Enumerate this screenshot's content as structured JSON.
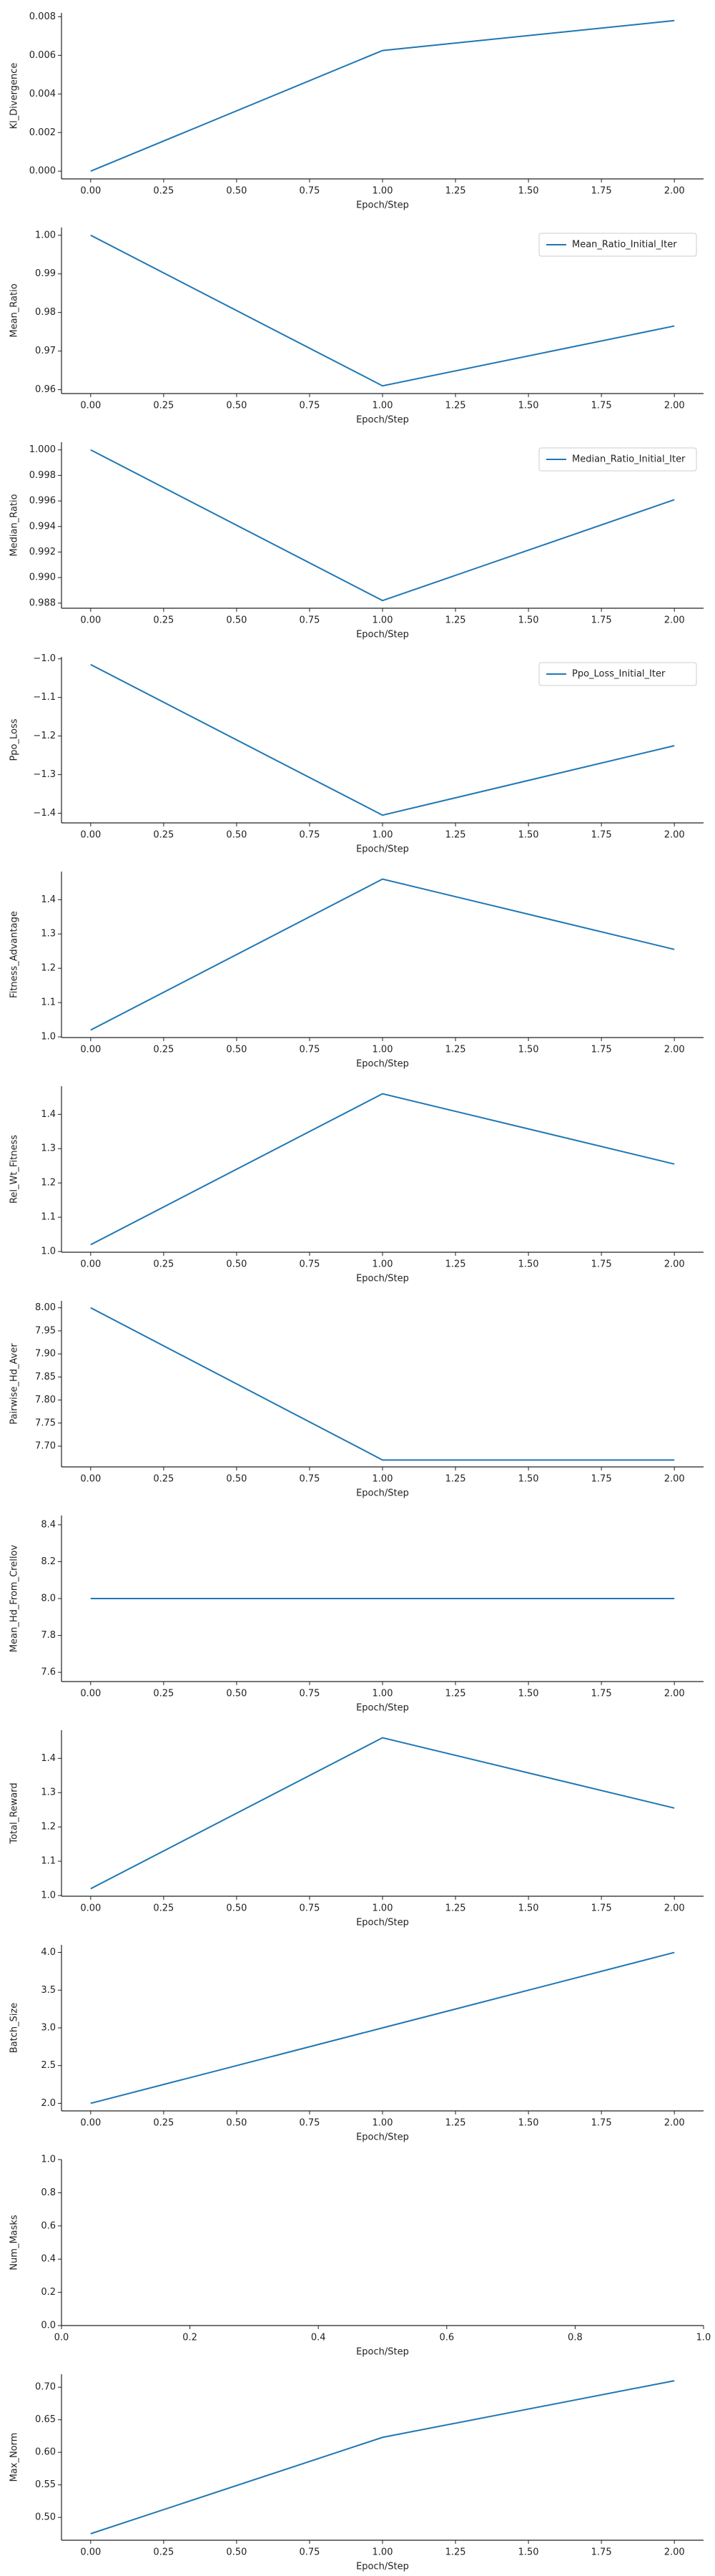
{
  "chart_data": [
    {
      "type": "line",
      "xlabel": "Epoch/Step",
      "ylabel": "Kl_Divergence",
      "x": [
        0,
        1,
        2
      ],
      "series": [
        {
          "color": "#1f77b4",
          "values": [
            0.0,
            0.00625,
            0.0078
          ]
        }
      ],
      "xlim": [
        -0.1,
        2.1
      ],
      "ylim": [
        -0.0004,
        0.0082
      ],
      "xticks": [
        {
          "value": 0,
          "label": "0.00"
        },
        0.25,
        {
          "value": 0.5,
          "label": "0.50"
        },
        0.75,
        {
          "value": 1,
          "label": "1.00"
        },
        1.25,
        {
          "value": 1.5,
          "label": "1.50"
        },
        1.75,
        {
          "value": 2,
          "label": "2.00"
        }
      ],
      "yticks": [
        {
          "value": 0,
          "label": "0.000"
        },
        0.002,
        0.004,
        0.006,
        0.008
      ]
    },
    {
      "type": "line",
      "xlabel": "Epoch/Step",
      "ylabel": "Mean_Ratio",
      "x": [
        0,
        1,
        2
      ],
      "legend": "upper right",
      "series": [
        {
          "name": "Mean_Ratio_Initial_Iter",
          "color": "#1f77b4",
          "values": [
            1.0,
            0.961,
            0.9765
          ]
        }
      ],
      "xlim": [
        -0.1,
        2.1
      ],
      "ylim": [
        0.959,
        1.002
      ],
      "xticks": [
        {
          "value": 0,
          "label": "0.00"
        },
        0.25,
        {
          "value": 0.5,
          "label": "0.50"
        },
        0.75,
        {
          "value": 1,
          "label": "1.00"
        },
        1.25,
        {
          "value": 1.5,
          "label": "1.50"
        },
        1.75,
        {
          "value": 2,
          "label": "2.00"
        }
      ],
      "yticks": [
        0.96,
        0.97,
        0.98,
        0.99,
        {
          "value": 1,
          "label": "1.00"
        }
      ]
    },
    {
      "type": "line",
      "xlabel": "Epoch/Step",
      "ylabel": "Median_Ratio",
      "x": [
        0,
        1,
        2
      ],
      "legend": "upper right",
      "series": [
        {
          "name": "Median_Ratio_Initial_Iter",
          "color": "#1f77b4",
          "values": [
            1.0,
            0.9882,
            0.9961
          ]
        }
      ],
      "xlim": [
        -0.1,
        2.1
      ],
      "ylim": [
        0.9876,
        1.0006
      ],
      "xticks": [
        {
          "value": 0,
          "label": "0.00"
        },
        0.25,
        {
          "value": 0.5,
          "label": "0.50"
        },
        0.75,
        {
          "value": 1,
          "label": "1.00"
        },
        1.25,
        {
          "value": 1.5,
          "label": "1.50"
        },
        1.75,
        {
          "value": 2,
          "label": "2.00"
        }
      ],
      "yticks": [
        0.988,
        {
          "value": 0.99,
          "label": "0.990"
        },
        0.992,
        0.994,
        0.996,
        0.998,
        {
          "value": 1,
          "label": "1.000"
        }
      ]
    },
    {
      "type": "line",
      "xlabel": "Epoch/Step",
      "ylabel": "Ppo_Loss",
      "x": [
        0,
        1,
        2
      ],
      "legend": "upper right",
      "series": [
        {
          "name": "Ppo_Loss_Initial_Iter",
          "color": "#1f77b4",
          "values": [
            -1.015,
            -1.405,
            -1.225
          ]
        }
      ],
      "xlim": [
        -0.1,
        2.1
      ],
      "ylim": [
        -1.425,
        -0.995
      ],
      "xticks": [
        {
          "value": 0,
          "label": "0.00"
        },
        0.25,
        {
          "value": 0.5,
          "label": "0.50"
        },
        0.75,
        {
          "value": 1,
          "label": "1.00"
        },
        1.25,
        {
          "value": 1.5,
          "label": "1.50"
        },
        1.75,
        {
          "value": 2,
          "label": "2.00"
        }
      ],
      "yticks": [
        {
          "value": -1.0,
          "label": "−1.0"
        },
        {
          "value": -1.1,
          "label": "−1.1"
        },
        {
          "value": -1.2,
          "label": "−1.2"
        },
        {
          "value": -1.3,
          "label": "−1.3"
        },
        {
          "value": -1.4,
          "label": "−1.4"
        }
      ]
    },
    {
      "type": "line",
      "xlabel": "Epoch/Step",
      "ylabel": "Fitness_Advantage",
      "x": [
        0,
        1,
        2
      ],
      "series": [
        {
          "color": "#1f77b4",
          "values": [
            1.02,
            1.46,
            1.255
          ]
        }
      ],
      "xlim": [
        -0.1,
        2.1
      ],
      "ylim": [
        0.998,
        1.482
      ],
      "xticks": [
        {
          "value": 0,
          "label": "0.00"
        },
        0.25,
        {
          "value": 0.5,
          "label": "0.50"
        },
        0.75,
        {
          "value": 1,
          "label": "1.00"
        },
        1.25,
        {
          "value": 1.5,
          "label": "1.50"
        },
        1.75,
        {
          "value": 2,
          "label": "2.00"
        }
      ],
      "yticks": [
        {
          "value": 1,
          "label": "1.0"
        },
        1.1,
        1.2,
        1.3,
        1.4
      ]
    },
    {
      "type": "line",
      "xlabel": "Epoch/Step",
      "ylabel": "Rel_Wt_Fitness",
      "x": [
        0,
        1,
        2
      ],
      "series": [
        {
          "color": "#1f77b4",
          "values": [
            1.02,
            1.46,
            1.255
          ]
        }
      ],
      "xlim": [
        -0.1,
        2.1
      ],
      "ylim": [
        0.998,
        1.482
      ],
      "xticks": [
        {
          "value": 0,
          "label": "0.00"
        },
        0.25,
        {
          "value": 0.5,
          "label": "0.50"
        },
        0.75,
        {
          "value": 1,
          "label": "1.00"
        },
        1.25,
        {
          "value": 1.5,
          "label": "1.50"
        },
        1.75,
        {
          "value": 2,
          "label": "2.00"
        }
      ],
      "yticks": [
        {
          "value": 1,
          "label": "1.0"
        },
        1.1,
        1.2,
        1.3,
        1.4
      ]
    },
    {
      "type": "line",
      "xlabel": "Epoch/Step",
      "ylabel": "Pairwise_Hd_Aver",
      "x": [
        0,
        1,
        2
      ],
      "series": [
        {
          "color": "#1f77b4",
          "values": [
            8.0,
            7.67,
            7.67
          ]
        }
      ],
      "xlim": [
        -0.1,
        2.1
      ],
      "ylim": [
        7.655,
        8.015
      ],
      "xticks": [
        {
          "value": 0,
          "label": "0.00"
        },
        0.25,
        {
          "value": 0.5,
          "label": "0.50"
        },
        0.75,
        {
          "value": 1,
          "label": "1.00"
        },
        1.25,
        {
          "value": 1.5,
          "label": "1.50"
        },
        1.75,
        {
          "value": 2,
          "label": "2.00"
        }
      ],
      "yticks": [
        {
          "value": 7.7,
          "label": "7.70"
        },
        7.75,
        {
          "value": 7.8,
          "label": "7.80"
        },
        7.85,
        {
          "value": 7.9,
          "label": "7.90"
        },
        7.95,
        {
          "value": 8,
          "label": "8.00"
        }
      ]
    },
    {
      "type": "line",
      "xlabel": "Epoch/Step",
      "ylabel": "Mean_Hd_From_Crellov",
      "x": [
        0,
        1,
        2
      ],
      "series": [
        {
          "color": "#1f77b4",
          "values": [
            8.0,
            8.0,
            8.0
          ]
        }
      ],
      "xlim": [
        -0.1,
        2.1
      ],
      "ylim": [
        7.55,
        8.45
      ],
      "xticks": [
        {
          "value": 0,
          "label": "0.00"
        },
        0.25,
        {
          "value": 0.5,
          "label": "0.50"
        },
        0.75,
        {
          "value": 1,
          "label": "1.00"
        },
        1.25,
        {
          "value": 1.5,
          "label": "1.50"
        },
        1.75,
        {
          "value": 2,
          "label": "2.00"
        }
      ],
      "yticks": [
        7.6,
        7.8,
        {
          "value": 8,
          "label": "8.0"
        },
        8.2,
        8.4
      ]
    },
    {
      "type": "line",
      "xlabel": "Epoch/Step",
      "ylabel": "Total_Reward",
      "x": [
        0,
        1,
        2
      ],
      "series": [
        {
          "color": "#1f77b4",
          "values": [
            1.02,
            1.46,
            1.255
          ]
        }
      ],
      "xlim": [
        -0.1,
        2.1
      ],
      "ylim": [
        0.998,
        1.482
      ],
      "xticks": [
        {
          "value": 0,
          "label": "0.00"
        },
        0.25,
        {
          "value": 0.5,
          "label": "0.50"
        },
        0.75,
        {
          "value": 1,
          "label": "1.00"
        },
        1.25,
        {
          "value": 1.5,
          "label": "1.50"
        },
        1.75,
        {
          "value": 2,
          "label": "2.00"
        }
      ],
      "yticks": [
        {
          "value": 1,
          "label": "1.0"
        },
        1.1,
        1.2,
        1.3,
        1.4
      ]
    },
    {
      "type": "line",
      "xlabel": "Epoch/Step",
      "ylabel": "Batch_Size",
      "x": [
        0,
        1,
        2
      ],
      "series": [
        {
          "color": "#1f77b4",
          "values": [
            2,
            3,
            4
          ]
        }
      ],
      "xlim": [
        -0.1,
        2.1
      ],
      "ylim": [
        1.9,
        4.1
      ],
      "xticks": [
        {
          "value": 0,
          "label": "0.00"
        },
        0.25,
        {
          "value": 0.5,
          "label": "0.50"
        },
        0.75,
        {
          "value": 1,
          "label": "1.00"
        },
        1.25,
        {
          "value": 1.5,
          "label": "1.50"
        },
        1.75,
        {
          "value": 2,
          "label": "2.00"
        }
      ],
      "yticks": [
        {
          "value": 2,
          "label": "2.0"
        },
        2.5,
        {
          "value": 3,
          "label": "3.0"
        },
        3.5,
        {
          "value": 4,
          "label": "4.0"
        }
      ]
    },
    {
      "type": "line",
      "xlabel": "Epoch/Step",
      "ylabel": "Num_Masks",
      "x": [],
      "series": [],
      "xlim": [
        0,
        1
      ],
      "ylim": [
        0,
        1
      ],
      "xticks": [
        {
          "value": 0,
          "label": "0.0"
        },
        0.2,
        0.4,
        0.6,
        0.8,
        {
          "value": 1,
          "label": "1.0"
        }
      ],
      "yticks": [
        {
          "value": 0,
          "label": "0.0"
        },
        0.2,
        0.4,
        0.6,
        0.8,
        {
          "value": 1,
          "label": "1.0"
        }
      ]
    },
    {
      "type": "line",
      "xlabel": "Epoch/Step",
      "ylabel": "Max_Norm",
      "x": [
        0,
        1,
        2
      ],
      "series": [
        {
          "color": "#1f77b4",
          "values": [
            0.475,
            0.623,
            0.71
          ]
        }
      ],
      "xlim": [
        -0.1,
        2.1
      ],
      "ylim": [
        0.465,
        0.72
      ],
      "xticks": [
        {
          "value": 0,
          "label": "0.00"
        },
        0.25,
        {
          "value": 0.5,
          "label": "0.50"
        },
        0.75,
        {
          "value": 1,
          "label": "1.00"
        },
        1.25,
        {
          "value": 1.5,
          "label": "1.50"
        },
        1.75,
        {
          "value": 2,
          "label": "2.00"
        }
      ],
      "yticks": [
        {
          "value": 0.5,
          "label": "0.50"
        },
        0.55,
        {
          "value": 0.6,
          "label": "0.60"
        },
        0.65,
        {
          "value": 0.7,
          "label": "0.70"
        }
      ]
    }
  ]
}
